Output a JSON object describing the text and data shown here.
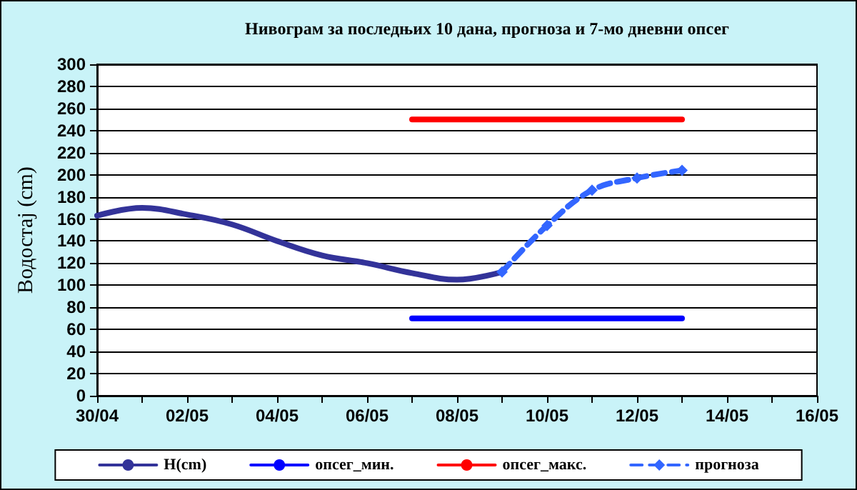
{
  "chart_data": {
    "type": "line",
    "title": "Нивограм за последњих 10 дана, прогноза и 7-мо дневни опсег",
    "ylabel": "Водостај (cm)",
    "xlim": [
      "--04-30",
      "--05-16"
    ],
    "xticks": [
      {
        "value": "--04-30",
        "label": "30/04"
      },
      {
        "value": "--05-01",
        "label": null
      },
      {
        "value": "--05-02",
        "label": "02/05"
      },
      {
        "value": "--05-03",
        "label": null
      },
      {
        "value": "--05-04",
        "label": "04/05"
      },
      {
        "value": "--05-05",
        "label": null
      },
      {
        "value": "--05-06",
        "label": "06/05"
      },
      {
        "value": "--05-07",
        "label": null
      },
      {
        "value": "--05-08",
        "label": "08/05"
      },
      {
        "value": "--05-09",
        "label": null
      },
      {
        "value": "--05-10",
        "label": "10/05"
      },
      {
        "value": "--05-11",
        "label": null
      },
      {
        "value": "--05-12",
        "label": "12/05"
      },
      {
        "value": "--05-13",
        "label": null
      },
      {
        "value": "--05-14",
        "label": "14/05"
      },
      {
        "value": "--05-15",
        "label": null
      },
      {
        "value": "--05-16",
        "label": "16/05"
      }
    ],
    "ylim": [
      0,
      300
    ],
    "yticks": [
      0,
      20,
      40,
      60,
      80,
      100,
      120,
      140,
      160,
      180,
      200,
      220,
      240,
      260,
      280,
      300
    ],
    "grid": "y",
    "legend": "bottom",
    "marker": "none",
    "line_style": "solid",
    "series": [
      {
        "name": "H(cm)",
        "color": "#333399",
        "x": [
          "--04-30",
          "--05-01",
          "--05-02",
          "--05-03",
          "--05-04",
          "--05-05",
          "--05-06",
          "--05-07",
          "--05-08",
          "--05-09"
        ],
        "values": [
          163,
          170,
          164,
          155,
          140,
          127,
          120,
          111,
          105,
          112
        ]
      },
      {
        "name": "опсег_мин.",
        "color": "#0000ff",
        "x": [
          "--05-07",
          "--05-13"
        ],
        "values": [
          70,
          70
        ]
      },
      {
        "name": "опсег_макс.",
        "color": "#ff0000",
        "x": [
          "--05-07",
          "--05-13"
        ],
        "values": [
          250,
          250
        ]
      },
      {
        "name": "прогноза",
        "color": "#3366ff",
        "line_style": "dashed",
        "marker": "diamond",
        "x": [
          "--05-09",
          "--05-10",
          "--05-11",
          "--05-12",
          "--05-13"
        ],
        "values": [
          112,
          154,
          186,
          197,
          204
        ]
      }
    ]
  }
}
